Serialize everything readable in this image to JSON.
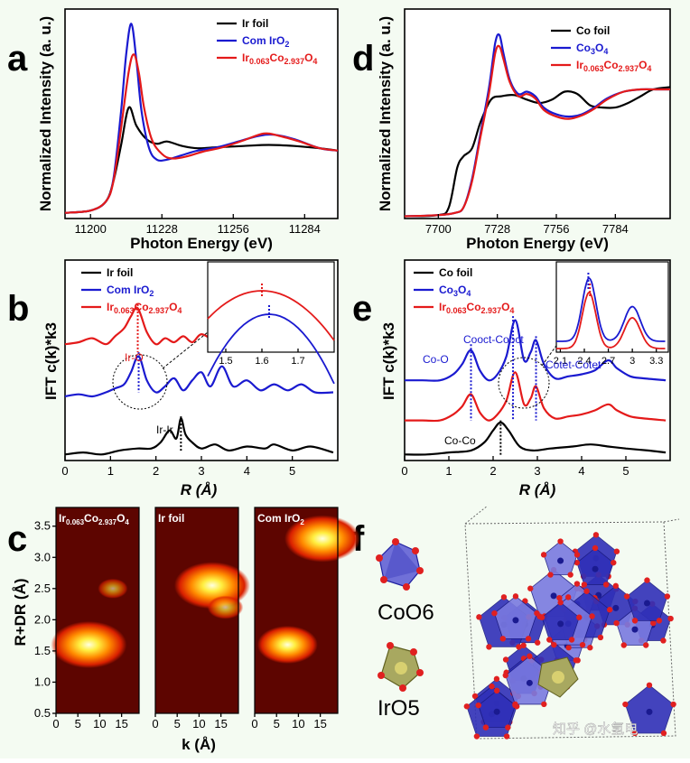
{
  "figure": {
    "watermark": "知乎 @水氢电"
  },
  "chart_data": [
    {
      "panel": "a",
      "type": "line",
      "xlabel": "Photon Energy (eV)",
      "ylabel": "Normalized Intensity (a. u.)",
      "xlim": [
        11190,
        11297
      ],
      "ylim": [
        0,
        1.85
      ],
      "xticks": [
        11200,
        11228,
        11256,
        11284
      ],
      "series": [
        {
          "name": "Ir foil",
          "color": "#000000",
          "x": [
            11190,
            11200,
            11206,
            11209,
            11212,
            11215,
            11218,
            11222,
            11226,
            11230,
            11236,
            11242,
            11250,
            11260,
            11270,
            11280,
            11290,
            11297
          ],
          "y": [
            0.05,
            0.07,
            0.15,
            0.33,
            0.65,
            0.98,
            0.82,
            0.7,
            0.66,
            0.68,
            0.64,
            0.62,
            0.63,
            0.64,
            0.65,
            0.64,
            0.62,
            0.6
          ]
        },
        {
          "name": "Com IrO2",
          "color": "#1a1ad0",
          "x": [
            11190,
            11200,
            11206,
            11209,
            11212,
            11214,
            11216,
            11218,
            11220,
            11223,
            11226,
            11230,
            11236,
            11242,
            11250,
            11258,
            11266,
            11272,
            11280,
            11290,
            11297
          ],
          "y": [
            0.05,
            0.07,
            0.15,
            0.35,
            0.95,
            1.45,
            1.72,
            1.4,
            0.95,
            0.62,
            0.52,
            0.52,
            0.56,
            0.6,
            0.63,
            0.68,
            0.73,
            0.74,
            0.7,
            0.62,
            0.6
          ]
        },
        {
          "name": "Ir0.063Co2.937O4",
          "color": "#e41a1a",
          "x": [
            11190,
            11200,
            11206,
            11209,
            11212,
            11215,
            11217,
            11219,
            11221,
            11224,
            11228,
            11232,
            11238,
            11244,
            11252,
            11260,
            11268,
            11274,
            11282,
            11290,
            11297
          ],
          "y": [
            0.05,
            0.07,
            0.15,
            0.33,
            0.8,
            1.3,
            1.45,
            1.28,
            0.98,
            0.7,
            0.57,
            0.53,
            0.55,
            0.59,
            0.63,
            0.69,
            0.75,
            0.73,
            0.68,
            0.62,
            0.6
          ]
        }
      ]
    },
    {
      "panel": "d",
      "type": "line",
      "xlabel": "Photon Energy (eV)",
      "ylabel": "Normalized Intensity (a. u.)",
      "xlim": [
        7684,
        7810
      ],
      "ylim": [
        0,
        1.85
      ],
      "xticks": [
        7700,
        7728,
        7756,
        7784
      ],
      "series": [
        {
          "name": "Co foil",
          "color": "#000000",
          "x": [
            7684,
            7700,
            7705,
            7709,
            7712,
            7716,
            7720,
            7725,
            7730,
            7736,
            7742,
            7748,
            7754,
            7760,
            7766,
            7772,
            7778,
            7784,
            7790,
            7796,
            7802,
            7810
          ],
          "y": [
            0.02,
            0.03,
            0.1,
            0.45,
            0.55,
            0.62,
            0.85,
            1.05,
            1.08,
            1.09,
            1.05,
            1.02,
            1.05,
            1.12,
            1.1,
            1.0,
            0.98,
            0.98,
            1.02,
            1.08,
            1.14,
            1.16
          ]
        },
        {
          "name": "Co3O4",
          "color": "#1a1ad0",
          "x": [
            7684,
            7700,
            7708,
            7712,
            7716,
            7720,
            7724,
            7727,
            7729,
            7731,
            7734,
            7738,
            7742,
            7746,
            7750,
            7756,
            7762,
            7768,
            7774,
            7780,
            7788,
            7796,
            7804,
            7810
          ],
          "y": [
            0.02,
            0.03,
            0.05,
            0.1,
            0.35,
            0.75,
            1.15,
            1.55,
            1.62,
            1.45,
            1.22,
            1.1,
            1.12,
            1.08,
            0.98,
            0.92,
            0.9,
            0.92,
            0.98,
            1.06,
            1.12,
            1.14,
            1.14,
            1.14
          ]
        },
        {
          "name": "Ir0.063Co2.937O4",
          "color": "#e41a1a",
          "x": [
            7684,
            7700,
            7708,
            7712,
            7716,
            7720,
            7724,
            7727,
            7729,
            7731,
            7734,
            7738,
            7742,
            7746,
            7750,
            7756,
            7762,
            7768,
            7774,
            7780,
            7788,
            7796,
            7804,
            7810
          ],
          "y": [
            0.02,
            0.03,
            0.05,
            0.1,
            0.33,
            0.72,
            1.1,
            1.46,
            1.52,
            1.4,
            1.2,
            1.08,
            1.1,
            1.06,
            0.96,
            0.9,
            0.88,
            0.91,
            0.97,
            1.05,
            1.12,
            1.14,
            1.14,
            1.14
          ]
        }
      ]
    },
    {
      "panel": "b",
      "type": "line",
      "xlabel": "R (Å)",
      "ylabel": "IFT c(k)*k3",
      "xlim": [
        0,
        6
      ],
      "ylim": [
        0,
        1
      ],
      "xticks": [
        0,
        1,
        2,
        3,
        4,
        5
      ],
      "annotations": [
        "Ir-O",
        "Ir-Ir"
      ],
      "series": [
        {
          "name": "Ir foil",
          "color": "#000000",
          "offset": 0.03,
          "x": [
            0,
            0.4,
            0.8,
            1.2,
            1.6,
            1.9,
            2.1,
            2.3,
            2.45,
            2.55,
            2.65,
            2.8,
            3.0,
            3.3,
            3.6,
            4.0,
            4.4,
            4.6,
            5.0,
            5.4,
            5.9
          ],
          "y": [
            0,
            0.01,
            0.0,
            0.02,
            0.03,
            0.03,
            0.06,
            0.12,
            0.08,
            0.18,
            0.1,
            0.06,
            0.03,
            0.05,
            0.02,
            0.04,
            0.03,
            0.05,
            0.02,
            0.04,
            0.01
          ]
        },
        {
          "name": "Com IrO2",
          "color": "#1a1ad0",
          "offset": 0.32,
          "x": [
            0,
            0.3,
            0.6,
            0.9,
            1.1,
            1.3,
            1.45,
            1.62,
            1.8,
            2.0,
            2.2,
            2.4,
            2.6,
            2.8,
            3.0,
            3.2,
            3.45,
            3.7,
            4.0,
            4.3,
            4.6,
            4.9,
            5.2,
            5.5,
            5.9
          ],
          "y": [
            0.0,
            0.01,
            0.0,
            0.02,
            0.04,
            0.06,
            0.12,
            0.2,
            0.08,
            0.02,
            0.05,
            0.09,
            0.03,
            0.08,
            0.12,
            0.05,
            0.15,
            0.05,
            0.08,
            0.03,
            0.06,
            0.03,
            0.06,
            0.02,
            0.02
          ]
        },
        {
          "name": "Ir0.063Co2.937O4",
          "color": "#e41a1a",
          "offset": 0.58,
          "x": [
            0,
            0.3,
            0.6,
            0.9,
            1.1,
            1.3,
            1.45,
            1.6,
            1.8,
            2.0,
            2.2,
            2.4,
            2.6,
            2.8,
            3.0,
            3.3,
            3.6,
            4.0,
            4.3,
            4.6,
            5.0,
            5.4,
            5.9
          ],
          "y": [
            0.0,
            0.01,
            0.03,
            0.0,
            0.04,
            0.08,
            0.14,
            0.18,
            0.06,
            0.0,
            0.03,
            0.01,
            0.04,
            0.01,
            0.05,
            0.02,
            0.04,
            0.02,
            0.04,
            0.02,
            0.03,
            0.01,
            0.02
          ]
        }
      ],
      "inset": {
        "xlim": [
          1.45,
          1.8
        ],
        "xticks": [
          1.5,
          1.6,
          1.7
        ],
        "peaks": {
          "Ir0.063Co2.937O4": 1.6,
          "Com IrO2": 1.62
        }
      }
    },
    {
      "panel": "e",
      "type": "line",
      "xlabel": "R (Å)",
      "ylabel": "IFT c(k)*k3",
      "xlim": [
        0,
        6
      ],
      "ylim": [
        0,
        1
      ],
      "xticks": [
        0,
        1,
        2,
        3,
        4,
        5
      ],
      "annotations": [
        "Co-O",
        "Cooct-Cooct",
        "Cotet-Cotet",
        "Co-Co"
      ],
      "series": [
        {
          "name": "Co foil",
          "color": "#000000",
          "offset": 0.03,
          "x": [
            0,
            0.5,
            1.0,
            1.5,
            1.8,
            2.0,
            2.17,
            2.35,
            2.6,
            2.9,
            3.3,
            3.8,
            4.2,
            4.6,
            5.0,
            5.5,
            5.9
          ],
          "y": [
            0,
            0.0,
            0.01,
            0.02,
            0.06,
            0.12,
            0.16,
            0.12,
            0.04,
            0.02,
            0.03,
            0.04,
            0.05,
            0.04,
            0.03,
            0.02,
            0.01
          ]
        },
        {
          "name": "Co3O4",
          "color": "#1a1ad0",
          "offset": 0.4,
          "x": [
            0,
            0.4,
            0.8,
            1.1,
            1.3,
            1.5,
            1.7,
            1.9,
            2.1,
            2.3,
            2.5,
            2.7,
            2.85,
            2.97,
            3.15,
            3.4,
            3.7,
            4.0,
            4.3,
            4.6,
            4.8,
            5.1,
            5.4,
            5.9
          ],
          "y": [
            0.0,
            0.0,
            0.0,
            0.03,
            0.08,
            0.15,
            0.05,
            0.0,
            0.03,
            0.12,
            0.3,
            0.1,
            0.14,
            0.2,
            0.08,
            0.01,
            0.02,
            0.03,
            0.05,
            0.1,
            0.06,
            0.02,
            0.01,
            0.0
          ]
        },
        {
          "name": "Ir0.063Co2.937O4",
          "color": "#e41a1a",
          "offset": 0.2,
          "x": [
            0,
            0.4,
            0.8,
            1.1,
            1.3,
            1.5,
            1.7,
            1.9,
            2.1,
            2.3,
            2.5,
            2.7,
            2.85,
            2.97,
            3.15,
            3.4,
            3.7,
            4.0,
            4.3,
            4.6,
            4.8,
            5.1,
            5.4,
            5.9
          ],
          "y": [
            0.0,
            0.0,
            0.0,
            0.03,
            0.07,
            0.13,
            0.04,
            0.0,
            0.03,
            0.1,
            0.24,
            0.08,
            0.11,
            0.17,
            0.06,
            0.01,
            0.02,
            0.03,
            0.05,
            0.08,
            0.05,
            0.02,
            0.01,
            0.0
          ]
        }
      ],
      "inset": {
        "xlim": [
          2.05,
          3.45
        ],
        "xticks": [
          2.1,
          2.4,
          2.7,
          3.0,
          3.3
        ],
        "peaks": {
          "Co3O4": 2.45,
          "Ir0.063Co2.937O4": 2.47
        }
      }
    },
    {
      "panel": "c",
      "type": "heatmap",
      "xlabel": "k (Å)",
      "ylabel": "R+DR (Å)",
      "xlim": [
        0,
        19
      ],
      "ylim": [
        0.5,
        3.8
      ],
      "xticks": [
        0,
        5,
        10,
        15
      ],
      "yticks": [
        0.5,
        1.0,
        1.5,
        2.0,
        2.5,
        3.0,
        3.5
      ],
      "maps": [
        {
          "name": "Ir0.063Co2.937O4",
          "hotspots": [
            {
              "k": 7.5,
              "r": 1.6,
              "amp": 1.0
            },
            {
              "k": 13,
              "r": 2.5,
              "amp": 0.25
            }
          ]
        },
        {
          "name": "Ir foil",
          "hotspots": [
            {
              "k": 13,
              "r": 2.55,
              "amp": 1.0
            },
            {
              "k": 16,
              "r": 2.2,
              "amp": 0.35
            }
          ]
        },
        {
          "name": "Com IrO2",
          "hotspots": [
            {
              "k": 7.5,
              "r": 1.6,
              "amp": 0.75
            },
            {
              "k": 15.5,
              "r": 3.3,
              "amp": 1.0
            }
          ]
        }
      ]
    }
  ],
  "legends": {
    "a": [
      {
        "main": "Ir foil",
        "sub1": "",
        "mid": "",
        "sub2": "",
        "tail": ""
      },
      {
        "main": "Com IrO",
        "sub1": "2",
        "mid": "",
        "sub2": "",
        "tail": ""
      },
      {
        "main": "Ir",
        "sub1": "0.063",
        "mid": "Co",
        "sub2": "2.937",
        "tail": "O4"
      }
    ],
    "d": [
      {
        "main": "Co foil",
        "sub1": "",
        "mid": "",
        "sub2": "",
        "tail": ""
      },
      {
        "main": "Co",
        "sub1": "3",
        "mid": "O",
        "sub2": "4",
        "tail": ""
      },
      {
        "main": "Ir",
        "sub1": "0.063",
        "mid": "Co",
        "sub2": "2.937",
        "tail": "O4"
      }
    ]
  },
  "panel_f": {
    "labels": [
      "CoO6",
      "IrO5"
    ]
  }
}
